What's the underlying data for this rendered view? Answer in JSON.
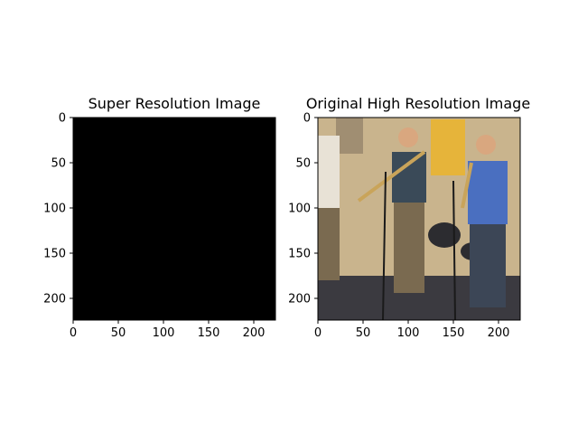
{
  "figure": {
    "background": "#ffffff"
  },
  "chart_data": [
    {
      "type": "heatmap",
      "title": "Super Resolution Image",
      "xlim": [
        0,
        224
      ],
      "ylim": [
        224,
        0
      ],
      "xticks": [
        0,
        50,
        100,
        150,
        200
      ],
      "yticks": [
        0,
        50,
        100,
        150,
        200
      ],
      "content": "solid black image",
      "fill_color": "#000000"
    },
    {
      "type": "heatmap",
      "title": "Original High Resolution Image",
      "xlim": [
        0,
        224
      ],
      "ylim": [
        224,
        0
      ],
      "xticks": [
        0,
        50,
        100,
        150,
        200
      ],
      "yticks": [
        0,
        50,
        100,
        150,
        200
      ],
      "content": "photo of musicians playing brass instruments (trombone, trumpet) indoors with a drum kit",
      "palette": {
        "wall": "#c9b48d",
        "floor": "#3b3a40",
        "shirt_left": "#3a4a58",
        "shirt_right": "#4a6fc0",
        "jeans": "#3c4656",
        "pants": "#7a6a50",
        "skin": "#d9a77f",
        "brass": "#c9a45a",
        "poster": "#e6b43a"
      }
    }
  ]
}
